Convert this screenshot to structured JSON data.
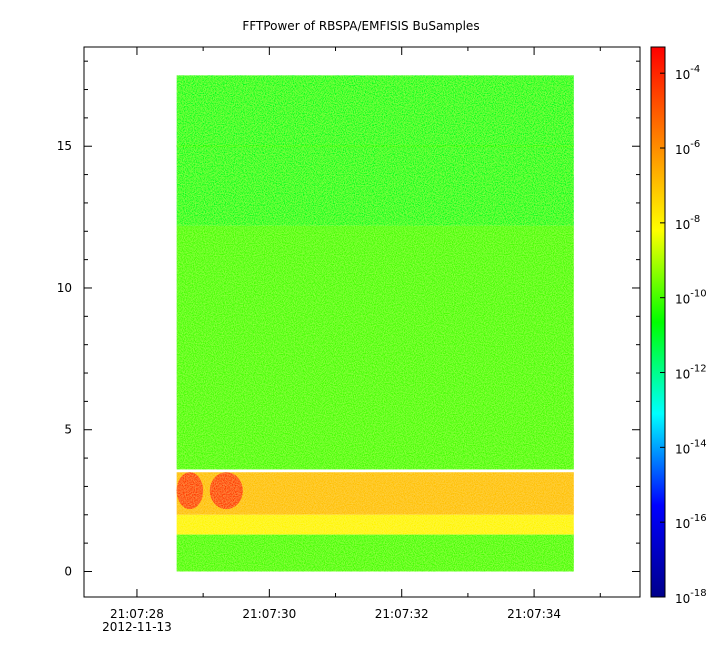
{
  "chart_data": {
    "type": "heatmap",
    "title": "FFTPower of RBSPA/EMFISIS  BuSamples",
    "xlabel": "",
    "ylabel": "",
    "x_axis": {
      "type": "time",
      "range": [
        "21:07:27.2",
        "21:07:35.6"
      ],
      "ticks": [
        {
          "label": "21:07:28",
          "sublabel": "2012-11-13"
        },
        {
          "label": "21:07:30"
        },
        {
          "label": "21:07:32"
        },
        {
          "label": "21:07:34"
        }
      ]
    },
    "y_axis": {
      "range": [
        -0.9,
        18.5
      ],
      "ticks": [
        {
          "value": 0,
          "label": "0"
        },
        {
          "value": 5,
          "label": "5"
        },
        {
          "value": 10,
          "label": "10"
        },
        {
          "value": 15,
          "label": "15"
        }
      ]
    },
    "data_extent": {
      "x": [
        "21:07:28.6",
        "21:07:34.6"
      ],
      "y": [
        0,
        17.5
      ]
    },
    "bands": [
      {
        "y_range": [
          12.2,
          17.5
        ],
        "log_power": -11
      },
      {
        "y_range": [
          3.6,
          12.2
        ],
        "log_power": -10
      },
      {
        "y_range": [
          2.0,
          3.5
        ],
        "log_power": -7
      },
      {
        "y_range": [
          1.3,
          2.0
        ],
        "log_power": -8
      },
      {
        "y_range": [
          0,
          1.3
        ],
        "log_power": -10
      }
    ],
    "lines": [
      {
        "y": 15.0,
        "log_power": -10.5
      }
    ],
    "bursts": [
      {
        "x_range": [
          "21:07:28.6",
          "21:07:29.0"
        ],
        "y_range": [
          2.2,
          3.5
        ],
        "log_power": -4
      },
      {
        "x_range": [
          "21:07:29.1",
          "21:07:29.6"
        ],
        "y_range": [
          2.2,
          3.5
        ],
        "log_power": -4
      }
    ],
    "colorbar": {
      "scale": "log",
      "range_exp": [
        -18,
        -3.3
      ],
      "colormap": [
        "#00008b",
        "#0000ff",
        "#00ffff",
        "#00ff00",
        "#ffff00",
        "#ff8000",
        "#ff0000"
      ],
      "ticks": [
        {
          "base": "10",
          "exp": "-4",
          "value_exp": -4
        },
        {
          "base": "10",
          "exp": "-6",
          "value_exp": -6
        },
        {
          "base": "10",
          "exp": "-8",
          "value_exp": -8
        },
        {
          "base": "10",
          "exp": "-10",
          "value_exp": -10
        },
        {
          "base": "10",
          "exp": "-12",
          "value_exp": -12
        },
        {
          "base": "10",
          "exp": "-14",
          "value_exp": -14
        },
        {
          "base": "10",
          "exp": "-16",
          "value_exp": -16
        },
        {
          "base": "10",
          "exp": "-18",
          "value_exp": -18
        }
      ]
    }
  }
}
